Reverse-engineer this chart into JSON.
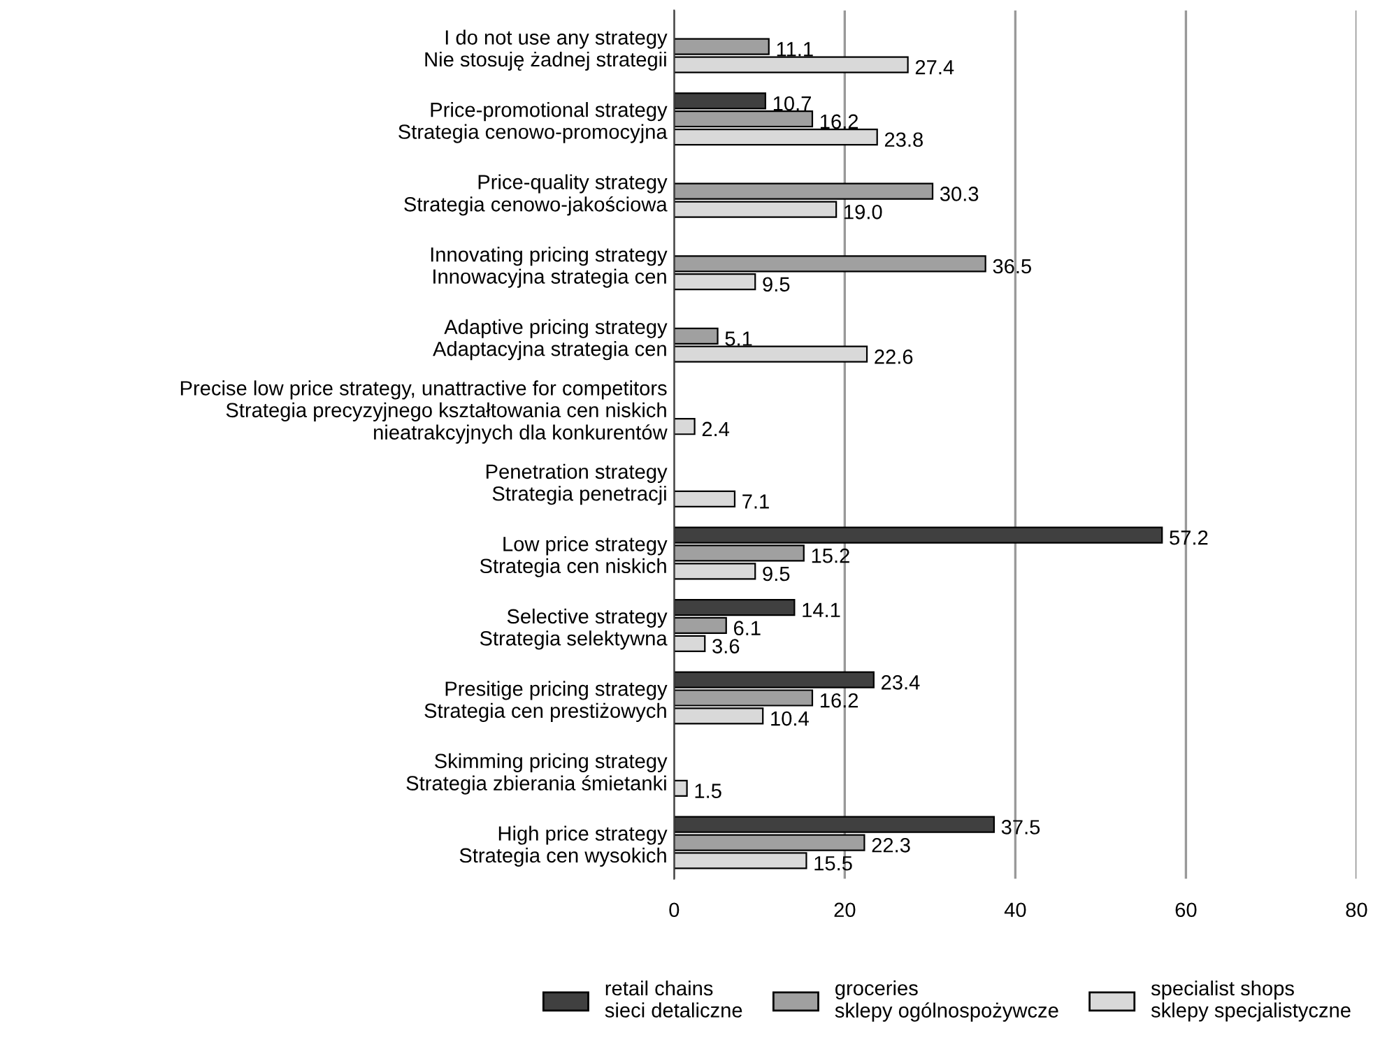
{
  "chart_data": {
    "type": "bar",
    "orientation": "horizontal",
    "categories": [
      "I do not use any strategy\nNie stosuję żadnej strategii",
      "Price-promotional strategy\nStrategia cenowo-promocyjna",
      "Price-quality strategy\nStrategia cenowo-jakościowa",
      "Innovating pricing strategy\nInnowacyjna strategia cen",
      "Adaptive pricing strategy\nAdaptacyjna strategia cen",
      "Precise low price strategy, unattractive for competitors\nStrategia precyzyjnego kształtowania cen niskich\nnieatrakcyjnych dla konkurentów",
      "Penetration strategy\nStrategia penetracji",
      "Low price strategy\nStrategia cen niskich",
      "Selective strategy\nStrategia selektywna",
      "Presitige pricing strategy\nStrategia cen prestiżowych",
      "Skimming pricing strategy\nStrategia zbierania śmietanki",
      "High price strategy\nStrategia cen wysokich"
    ],
    "series": [
      {
        "name": "retail chains\nsieci detaliczne",
        "color": "#404040",
        "values": [
          null,
          10.7,
          null,
          null,
          null,
          null,
          null,
          57.2,
          14.1,
          23.4,
          null,
          37.5
        ],
        "value_labels": [
          null,
          "10.7",
          null,
          null,
          null,
          null,
          null,
          "57.2",
          "14.1",
          "23.4",
          null,
          "37.5"
        ]
      },
      {
        "name": "groceries\nsklepy ogólnospożywcze",
        "color": "#a0a0a0",
        "values": [
          11.1,
          16.2,
          30.3,
          36.5,
          5.1,
          null,
          null,
          15.2,
          6.1,
          16.2,
          null,
          22.3
        ],
        "value_labels": [
          "11.1",
          "16.2",
          "30.3",
          "36.5",
          "5.1",
          null,
          null,
          "15.2",
          "6.1",
          "16.2",
          null,
          "22.3"
        ]
      },
      {
        "name": "specialist shops\nsklepy specjalistyczne",
        "color": "#d9d9d9",
        "values": [
          27.4,
          23.8,
          19.0,
          9.5,
          22.6,
          2.4,
          7.1,
          9.5,
          3.6,
          10.4,
          1.5,
          15.5
        ],
        "value_labels": [
          "27.4",
          "23.8",
          "19.0",
          "9.5",
          "22.6",
          "2.4",
          "7.1",
          "9.5",
          "3.6",
          "10.4",
          "1.5",
          "15.5"
        ]
      }
    ],
    "xlim": [
      0,
      80
    ],
    "xticks": [
      0,
      20,
      40,
      60,
      80
    ],
    "grid": "x",
    "legend": "bottom"
  }
}
